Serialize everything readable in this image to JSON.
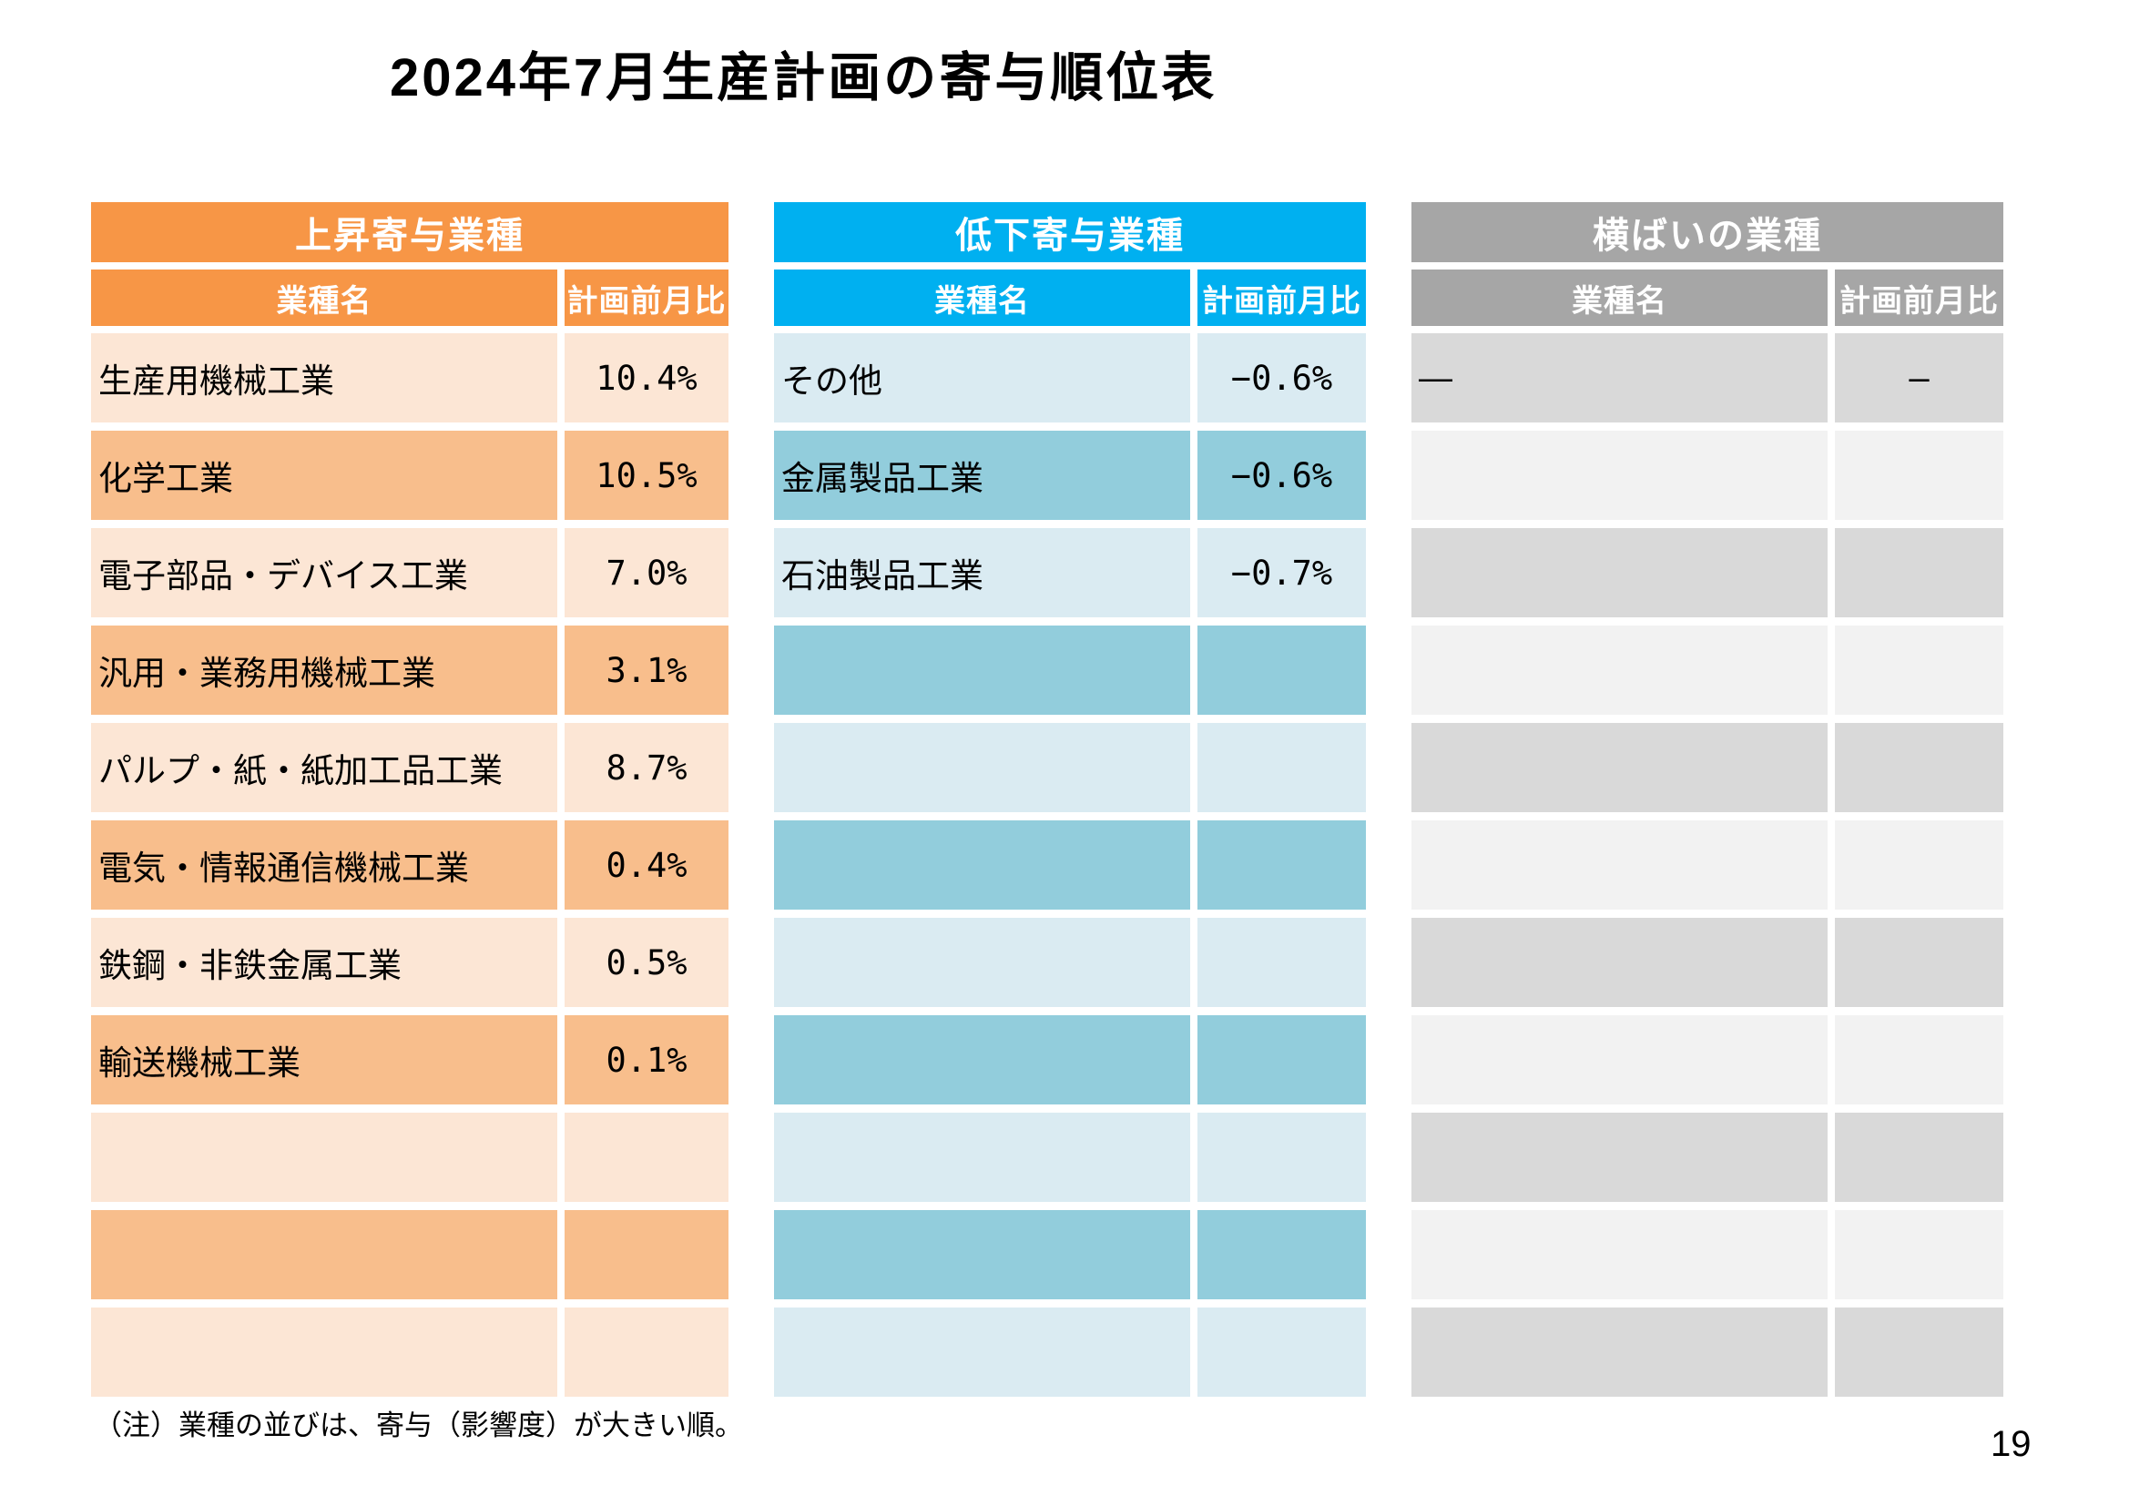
{
  "title": "2024年7月生産計画の寄与順位表",
  "note": "（注）業種の並びは、寄与（影響度）が大きい順。",
  "page_number": "19",
  "columns": {
    "name": "業種名",
    "value": "計画前月比"
  },
  "tables": [
    {
      "id": "rising",
      "title": "上昇寄与業種",
      "first_shade": "light",
      "colors": {
        "header": "#F79646",
        "light": "#FCE6D5",
        "dark": "#F8BE8C"
      },
      "rows": [
        {
          "name": "生産用機械工業",
          "value": "10.4%"
        },
        {
          "name": "化学工業",
          "value": "10.5%"
        },
        {
          "name": "電子部品・デバイス工業",
          "value": "7.0%"
        },
        {
          "name": "汎用・業務用機械工業",
          "value": "3.1%"
        },
        {
          "name": "パルプ・紙・紙加工品工業",
          "value": "8.7%"
        },
        {
          "name": "電気・情報通信機械工業",
          "value": "0.4%"
        },
        {
          "name": "鉄鋼・非鉄金属工業",
          "value": "0.5%"
        },
        {
          "name": "輸送機械工業",
          "value": "0.1%"
        },
        {
          "name": "",
          "value": ""
        },
        {
          "name": "",
          "value": ""
        },
        {
          "name": "",
          "value": ""
        }
      ]
    },
    {
      "id": "falling",
      "title": "低下寄与業種",
      "first_shade": "light",
      "colors": {
        "header": "#00B0F0",
        "light": "#DAEBF2",
        "dark": "#92CDDC"
      },
      "rows": [
        {
          "name": "その他",
          "value": "−0.6%"
        },
        {
          "name": "金属製品工業",
          "value": "−0.6%"
        },
        {
          "name": "石油製品工業",
          "value": "−0.7%"
        },
        {
          "name": "",
          "value": ""
        },
        {
          "name": "",
          "value": ""
        },
        {
          "name": "",
          "value": ""
        },
        {
          "name": "",
          "value": ""
        },
        {
          "name": "",
          "value": ""
        },
        {
          "name": "",
          "value": ""
        },
        {
          "name": "",
          "value": ""
        },
        {
          "name": "",
          "value": ""
        }
      ]
    },
    {
      "id": "flat",
      "title": "横ばいの業種",
      "first_shade": "dark",
      "colors": {
        "header": "#A6A6A6",
        "light": "#F2F2F2",
        "dark": "#D9D9D9"
      },
      "rows": [
        {
          "name": "—",
          "value": "—"
        },
        {
          "name": "",
          "value": ""
        },
        {
          "name": "",
          "value": ""
        },
        {
          "name": "",
          "value": ""
        },
        {
          "name": "",
          "value": ""
        },
        {
          "name": "",
          "value": ""
        },
        {
          "name": "",
          "value": ""
        },
        {
          "name": "",
          "value": ""
        },
        {
          "name": "",
          "value": ""
        },
        {
          "name": "",
          "value": ""
        },
        {
          "name": "",
          "value": ""
        }
      ]
    }
  ]
}
